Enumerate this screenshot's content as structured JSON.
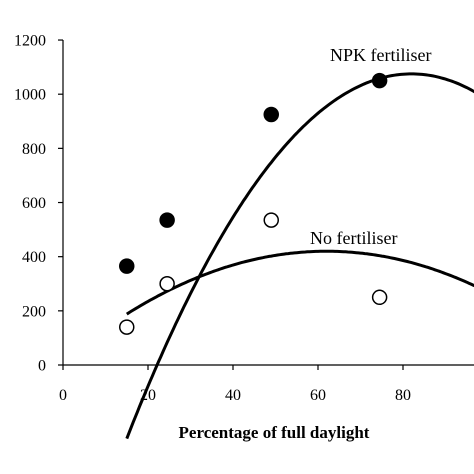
{
  "chart_data": {
    "type": "scatter",
    "title": "",
    "xlabel": "Percentage of full daylight",
    "ylabel": "",
    "xlim": [
      0,
      100
    ],
    "ylim": [
      0,
      1200
    ],
    "x_ticks": [
      0,
      20,
      40,
      60,
      80
    ],
    "y_ticks": [
      0,
      200,
      400,
      600,
      800,
      1000,
      1200
    ],
    "grid": false,
    "series": [
      {
        "name": "NPK fertiliser",
        "marker": "filled-circle",
        "color": "#000000",
        "points": [
          {
            "x": 15,
            "y": 365
          },
          {
            "x": 24.5,
            "y": 535
          },
          {
            "x": 49,
            "y": 925
          },
          {
            "x": 74.5,
            "y": 1050
          }
        ],
        "fit_curve": {
          "kind": "quadratic",
          "vertex_x": 82,
          "vertex_y": 1075,
          "curvature": 0.3,
          "x_start": 15
        }
      },
      {
        "name": "No fertiliser",
        "marker": "open-circle",
        "color": "#000000",
        "points": [
          {
            "x": 15,
            "y": 140
          },
          {
            "x": 24.5,
            "y": 300
          },
          {
            "x": 49,
            "y": 535
          },
          {
            "x": 74.5,
            "y": 250
          }
        ],
        "fit_curve": {
          "kind": "quadratic",
          "vertex_x": 62,
          "vertex_y": 420,
          "curvature": 0.105,
          "x_start": 15
        }
      }
    ]
  }
}
